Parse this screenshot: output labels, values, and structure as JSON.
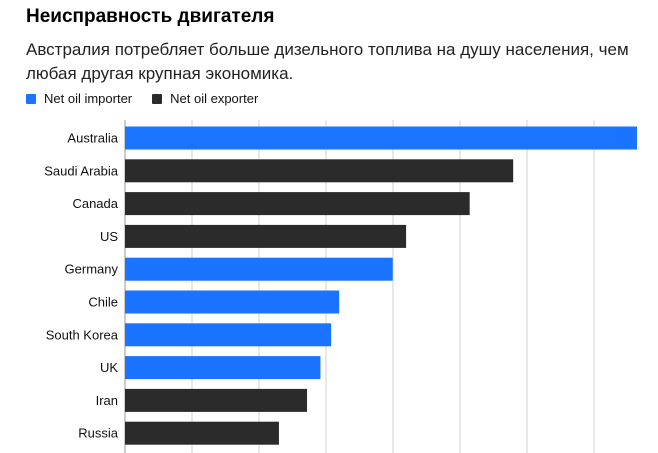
{
  "title": "Неисправность двигателя",
  "subtitle": "Австралия потребляет больше дизельного топлива на душу населения, чем любая другая крупная экономика.",
  "legend": {
    "importer_label": "Net oil importer",
    "exporter_label": "Net oil exporter"
  },
  "colors": {
    "importer": "#1a74ff",
    "exporter": "#2b2b2b",
    "grid": "#d0d0d0"
  },
  "chart_data": {
    "type": "bar",
    "orientation": "horizontal",
    "title": "Неисправность двигателя",
    "subtitle": "Австралия потребляет больше дизельного топлива на душу населения, чем любая другая крупная экономика.",
    "xlim": [
      0,
      7.65
    ],
    "grid": true,
    "legend_position": "top-left",
    "categories": [
      "Australia",
      "Saudi Arabia",
      "Canada",
      "US",
      "Germany",
      "Chile",
      "South Korea",
      "UK",
      "Iran",
      "Russia"
    ],
    "values": [
      7.65,
      5.8,
      5.15,
      4.2,
      4.0,
      3.2,
      3.08,
      2.92,
      2.72,
      2.3
    ],
    "group": [
      "Net oil importer",
      "Net oil exporter",
      "Net oil exporter",
      "Net oil exporter",
      "Net oil importer",
      "Net oil importer",
      "Net oil importer",
      "Net oil importer",
      "Net oil exporter",
      "Net oil exporter"
    ]
  }
}
